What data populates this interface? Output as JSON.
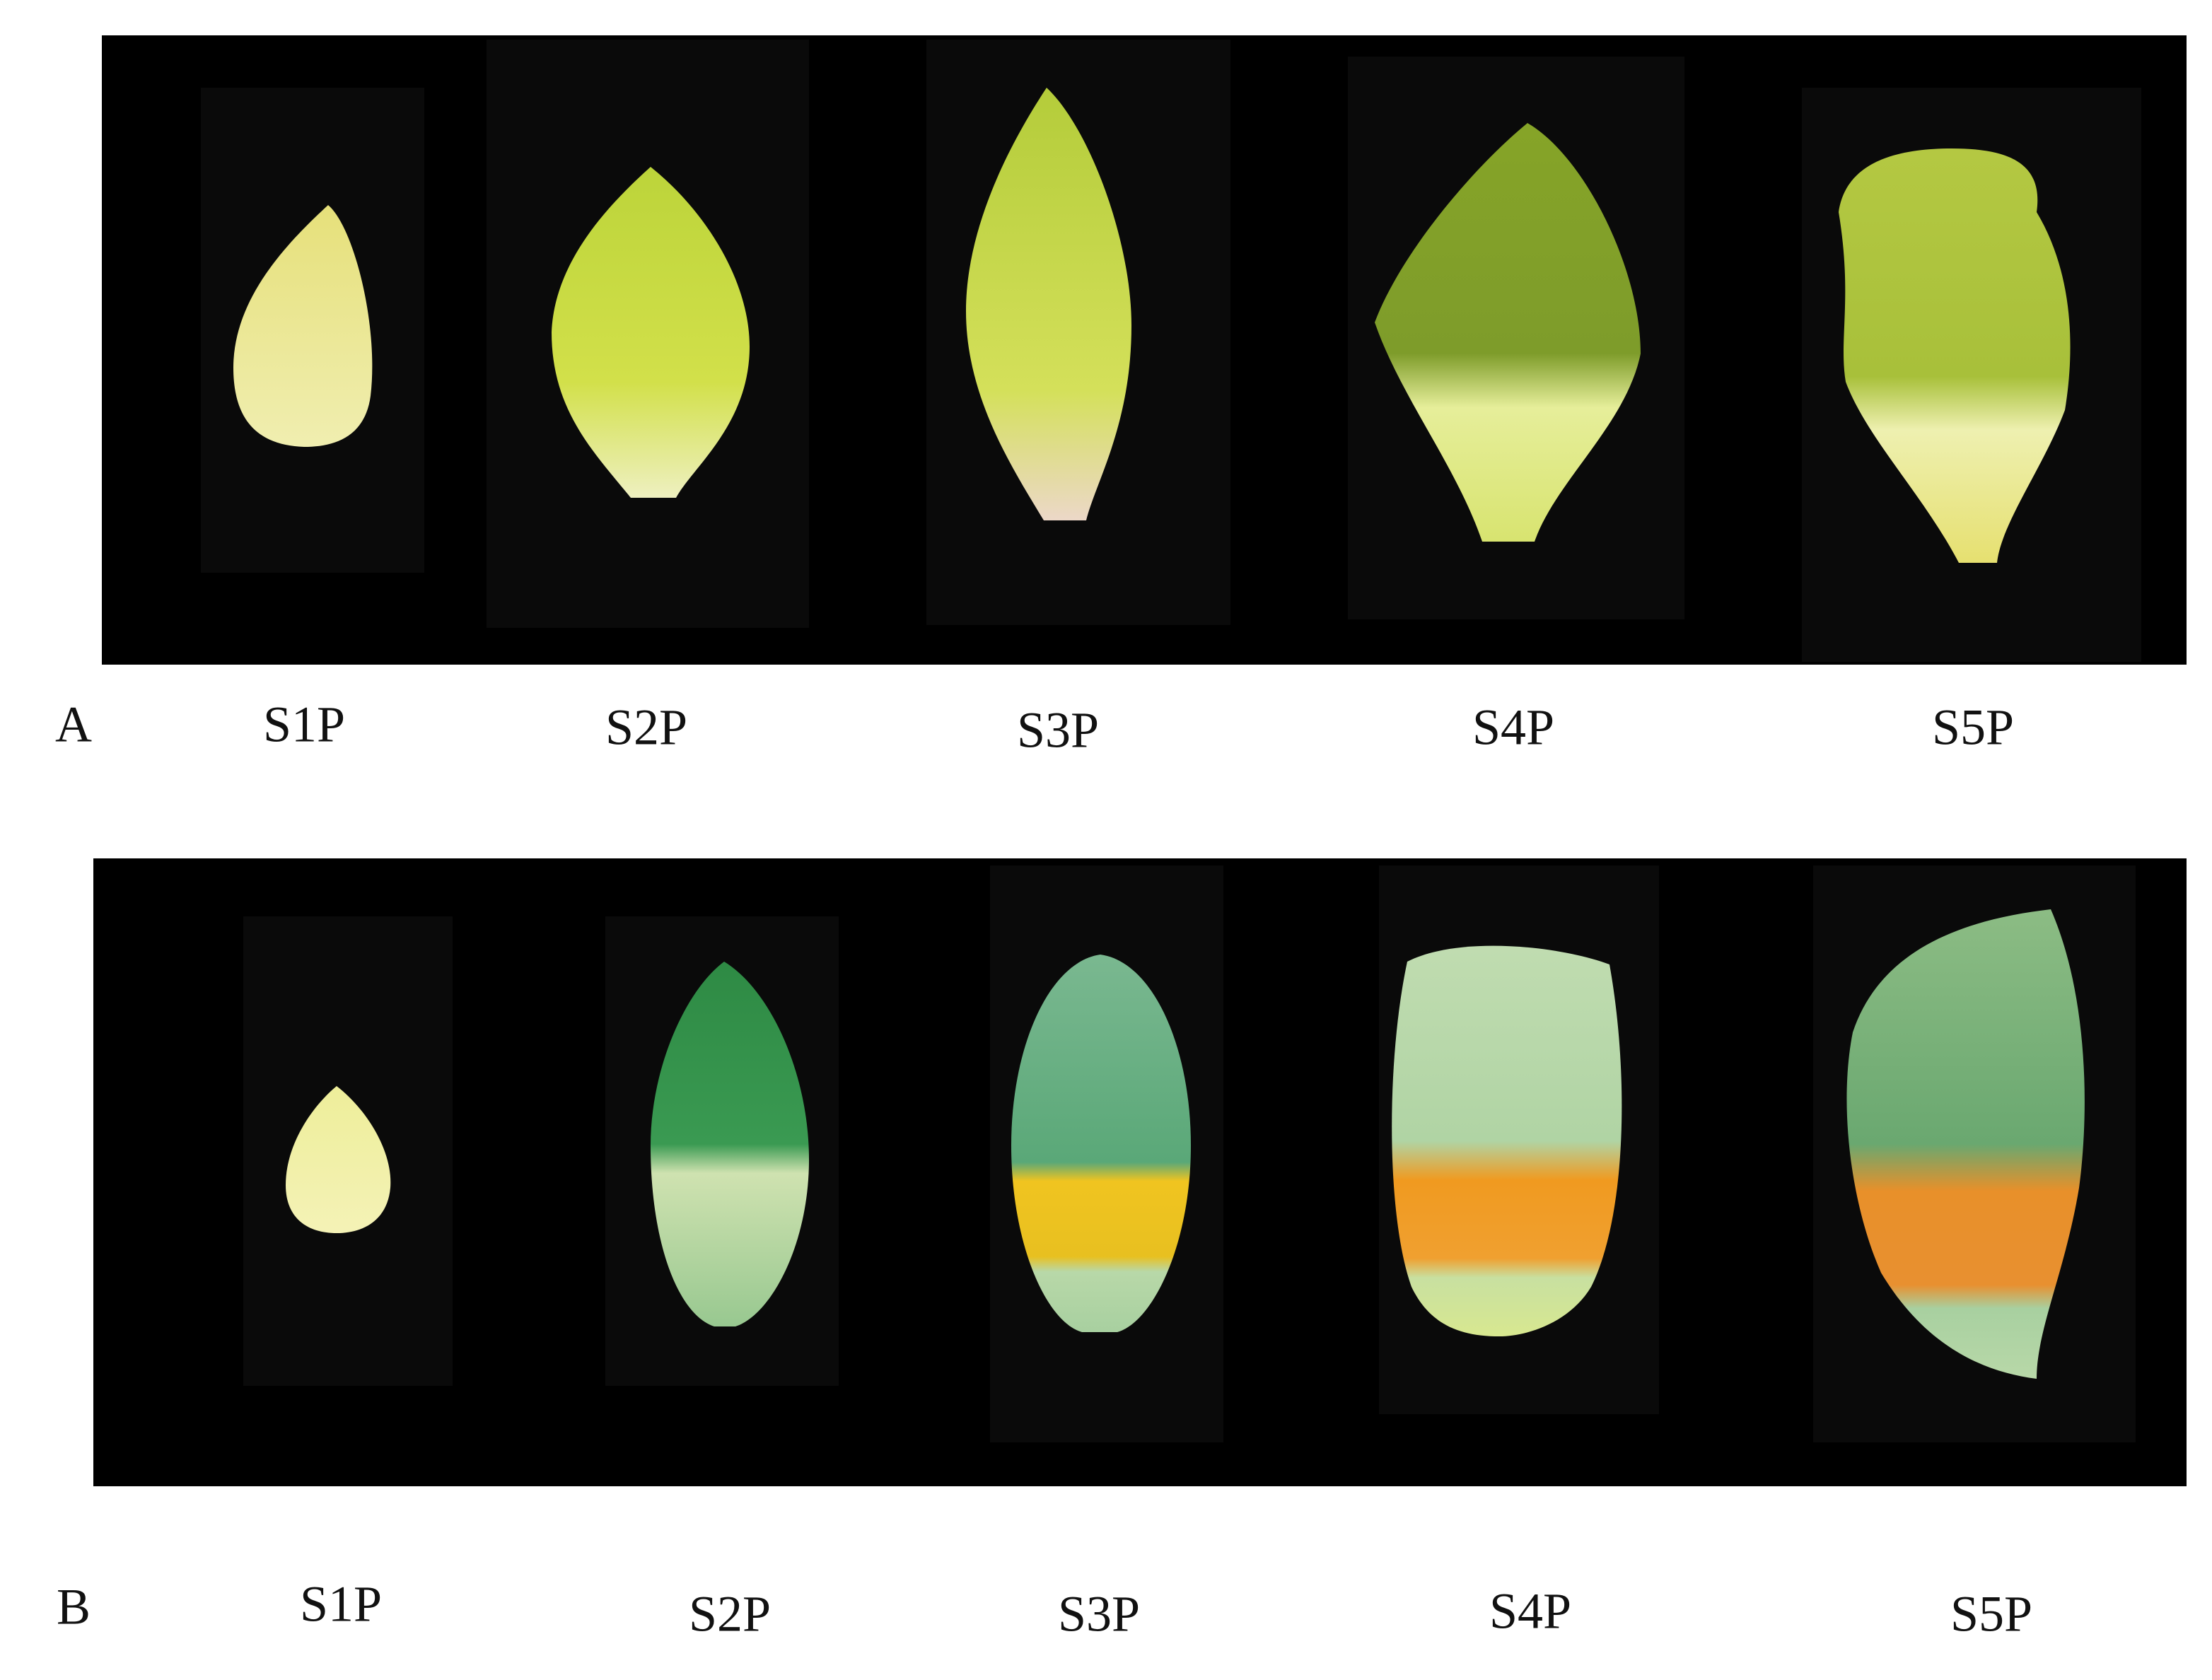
{
  "panels": [
    {
      "label": "A",
      "items": [
        "S1P",
        "S2P",
        "S3P",
        "S4P",
        "S5P"
      ]
    },
    {
      "label": "B",
      "items": [
        "S1P",
        "S2P",
        "S3P",
        "S4P",
        "S5P"
      ]
    }
  ]
}
